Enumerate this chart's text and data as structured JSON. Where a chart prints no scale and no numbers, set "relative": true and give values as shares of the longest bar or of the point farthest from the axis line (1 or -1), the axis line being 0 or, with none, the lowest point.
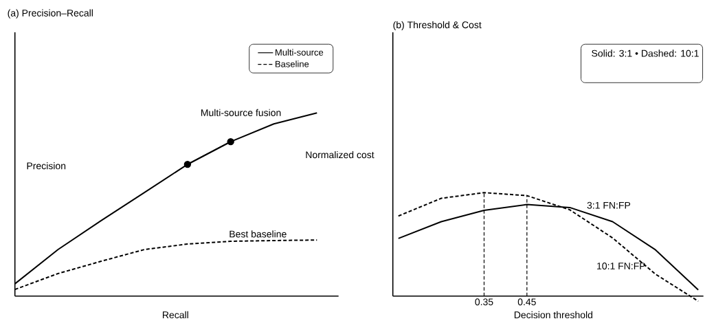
{
  "chart_data": [
    {
      "type": "line",
      "title": "(a) Precision–Recall",
      "xlabel": "Recall",
      "ylabel": "Precision",
      "relative": true,
      "legend": "top right",
      "categories": [
        null,
        null,
        null,
        null,
        null,
        null,
        null,
        null
      ],
      "annotations": [
        "Multi-source fusion",
        "Best baseline"
      ],
      "series": [
        {
          "name": "Multi-source",
          "color": "#000000",
          "line_style": "solid",
          "values": [
            0.067,
            0.254,
            0.412,
            0.565,
            0.719,
            0.843,
            0.94,
            1.0
          ]
        },
        {
          "name": "Baseline",
          "color": "#000000",
          "line_style": "dashed",
          "values": [
            0.036,
            0.123,
            0.19,
            0.254,
            0.284,
            0.299,
            0.303,
            0.306
          ]
        },
        {
          "color": "#000000",
          "line_style": "solid",
          "marker": "circle",
          "values": [
            null,
            null,
            null,
            null,
            0.719,
            0.843,
            null,
            null
          ]
        }
      ]
    },
    {
      "type": "line",
      "title": "(b) Threshold & Cost",
      "xlabel": "Decision threshold",
      "ylabel": "Normalized cost",
      "relative": true,
      "xlim": [
        0.137,
        0.862
      ],
      "xticks": [
        0.35,
        0.45
      ],
      "x": [
        0.15,
        0.25,
        0.35,
        0.45,
        0.55,
        0.65,
        0.75,
        0.85
      ],
      "ref_lines": [
        {
          "axis": "x",
          "value": 0.35,
          "line_style": "dashed"
        },
        {
          "axis": "x",
          "value": 0.45,
          "line_style": "dashed"
        }
      ],
      "annotations": [
        "Solid: 3:1 • Dashed: 10:1",
        "3:1 FN:FP",
        "10:1 FN:FP"
      ],
      "series": [
        {
          "color": "#000000",
          "line_style": "solid",
          "values": [
            0.557,
            0.719,
            0.829,
            0.885,
            0.856,
            0.719,
            0.447,
            0.06
          ]
        },
        {
          "color": "#000000",
          "line_style": "dashed",
          "values": [
            0.774,
            0.945,
            1.0,
            0.971,
            0.834,
            0.562,
            0.212,
            -0.05
          ]
        }
      ]
    }
  ]
}
